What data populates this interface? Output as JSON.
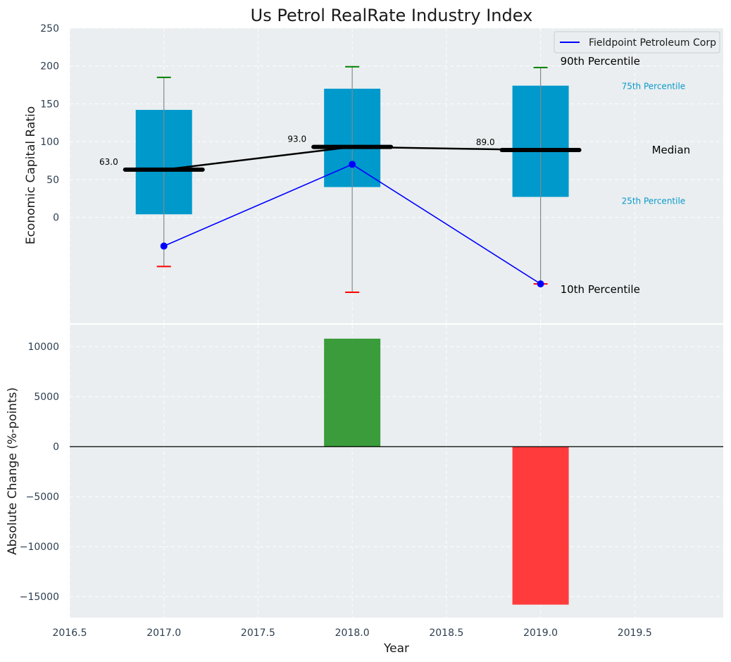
{
  "chart_data": [
    {
      "type": "box",
      "title": "Us Petrol RealRate Industry Index",
      "xlabel": "",
      "ylabel": "Economic Capital Ratio",
      "xlim": [
        2016.5,
        2019.97
      ],
      "ylim": [
        -140,
        250
      ],
      "yticks": [
        0,
        50,
        100,
        150,
        200,
        250
      ],
      "years": [
        2017,
        2018,
        2019
      ],
      "p10": [
        -65,
        -99,
        -88
      ],
      "p25": [
        4,
        40,
        27
      ],
      "median": [
        63,
        93,
        89
      ],
      "p75": [
        142,
        170,
        174
      ],
      "p90": [
        185,
        199,
        198
      ],
      "median_labels": [
        "63.0",
        "93.0",
        "89.0"
      ],
      "company": {
        "name": "Fieldpoint Petroleum Corp",
        "values": [
          -38,
          70,
          -88
        ]
      },
      "annotations": {
        "p90": "90th Percentile",
        "p75": "75th Percentile",
        "median": "Median",
        "p25": "25th Percentile",
        "p10": "10th Percentile"
      },
      "legend_position": "top-right",
      "colors": {
        "box": "#0099cc",
        "median": "#000000",
        "company": "#0000ff",
        "p90_cap": "#008000",
        "p10_cap": "#ff0000",
        "whisker": "#7f8c8d",
        "background": "#eaeef0"
      }
    },
    {
      "type": "bar",
      "xlabel": "Year",
      "ylabel": "Absolute Change (%-points)",
      "xlim": [
        2016.5,
        2019.97
      ],
      "ylim": [
        -17100,
        12200
      ],
      "xticks": [
        2016.5,
        2017.0,
        2017.5,
        2018.0,
        2018.5,
        2019.0,
        2019.5
      ],
      "xtick_labels": [
        "2016.5",
        "2017.0",
        "2017.5",
        "2018.0",
        "2018.5",
        "2019.0",
        "2019.5"
      ],
      "yticks": [
        -15000,
        -10000,
        -5000,
        0,
        5000,
        10000
      ],
      "ytick_labels": [
        "−15000",
        "−10000",
        "−5000",
        "0",
        "5000",
        "10000"
      ],
      "x": [
        2018,
        2019
      ],
      "values": [
        10800,
        -15800
      ],
      "colors": {
        "positive": "#3a9c3a",
        "negative": "#ff3b3b",
        "zero_line": "#000000"
      }
    }
  ]
}
